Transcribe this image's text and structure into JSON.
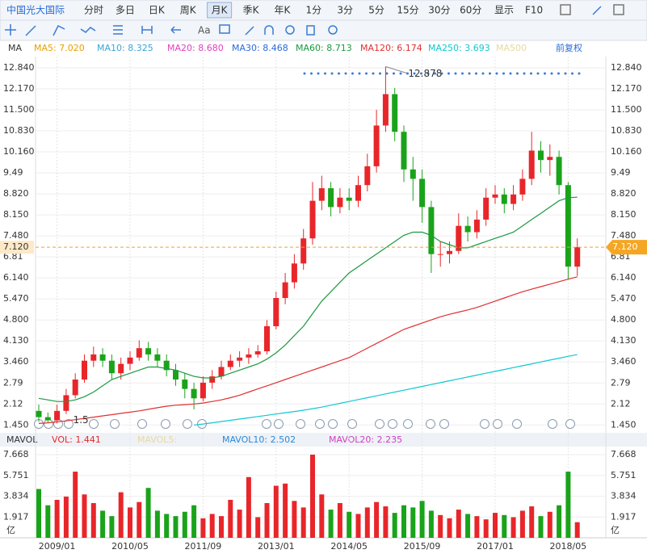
{
  "toolbar": {
    "stock": "中国光大国际",
    "periods": [
      "分时",
      "多日",
      "日K",
      "周K",
      "月K",
      "季K",
      "年K",
      "1分",
      "3分",
      "5分",
      "15分",
      "30分",
      "60分"
    ],
    "selected_period": 4,
    "display": "显示",
    "f10": "F10",
    "font_button": "Aa"
  },
  "chart_data": {
    "type": "candlestick",
    "indicator": "MA",
    "adjust": "前复权",
    "series": [
      {
        "label": "MA5: 7.020",
        "color": "#e6a000"
      },
      {
        "label": "MA10: 8.325",
        "color": "#3ba5d8"
      },
      {
        "label": "MA20: 8.680",
        "color": "#e040c0"
      },
      {
        "label": "MA30: 8.468",
        "color": "#2a6ad8"
      },
      {
        "label": "MA60: 8.713",
        "color": "#1a9a40",
        "values": [
          2.3,
          2.25,
          2.2,
          2.2,
          2.25,
          2.35,
          2.5,
          2.7,
          2.9,
          3.0,
          3.1,
          3.2,
          3.3,
          3.3,
          3.25,
          3.2,
          3.1,
          3.0,
          2.95,
          2.95,
          3.0,
          3.1,
          3.2,
          3.3,
          3.4,
          3.55,
          3.75,
          4.0,
          4.3,
          4.6,
          5.0,
          5.4,
          5.7,
          6.0,
          6.3,
          6.5,
          6.7,
          6.9,
          7.1,
          7.3,
          7.5,
          7.6,
          7.6,
          7.5,
          7.3,
          7.2,
          7.1,
          7.1,
          7.2,
          7.3,
          7.4,
          7.5,
          7.6,
          7.8,
          8.0,
          8.2,
          8.4,
          8.6,
          8.7,
          8.713
        ]
      },
      {
        "label": "MA120: 6.174",
        "color": "#e03030",
        "values": [
          1.5,
          1.52,
          1.55,
          1.58,
          1.62,
          1.66,
          1.7,
          1.74,
          1.78,
          1.82,
          1.86,
          1.9,
          1.95,
          2.0,
          2.05,
          2.08,
          2.1,
          2.12,
          2.15,
          2.2,
          2.25,
          2.32,
          2.4,
          2.5,
          2.6,
          2.7,
          2.8,
          2.9,
          3.0,
          3.1,
          3.2,
          3.3,
          3.4,
          3.5,
          3.6,
          3.75,
          3.9,
          4.05,
          4.2,
          4.35,
          4.5,
          4.6,
          4.7,
          4.8,
          4.9,
          4.98,
          5.05,
          5.12,
          5.2,
          5.3,
          5.4,
          5.5,
          5.6,
          5.7,
          5.78,
          5.86,
          5.94,
          6.02,
          6.1,
          6.174
        ]
      },
      {
        "label": "MA250: 3.693",
        "color": "#10c8d0",
        "values": [
          null,
          null,
          null,
          null,
          null,
          null,
          null,
          null,
          null,
          null,
          null,
          null,
          null,
          null,
          null,
          null,
          null,
          1.45,
          1.48,
          1.52,
          1.56,
          1.6,
          1.64,
          1.68,
          1.72,
          1.76,
          1.8,
          1.84,
          1.88,
          1.92,
          1.97,
          2.02,
          2.08,
          2.14,
          2.2,
          2.26,
          2.32,
          2.38,
          2.44,
          2.5,
          2.56,
          2.62,
          2.68,
          2.74,
          2.8,
          2.86,
          2.92,
          2.98,
          3.04,
          3.1,
          3.16,
          3.22,
          3.28,
          3.34,
          3.4,
          3.46,
          3.52,
          3.58,
          3.64,
          3.693
        ]
      },
      {
        "label": "MA500",
        "color": "#e8d8a0"
      }
    ],
    "categories": [
      null,
      null,
      "2009/01",
      null,
      null,
      null,
      null,
      null,
      null,
      null,
      "2010/05",
      null,
      null,
      null,
      null,
      null,
      null,
      null,
      "2011/09",
      null,
      null,
      null,
      null,
      null,
      null,
      null,
      "2013/01",
      null,
      null,
      null,
      null,
      null,
      null,
      null,
      "2014/05",
      null,
      null,
      null,
      null,
      null,
      null,
      null,
      "2015/09",
      null,
      null,
      null,
      null,
      null,
      null,
      null,
      "2017/01",
      null,
      null,
      null,
      null,
      null,
      null,
      null,
      "2018/05",
      null
    ],
    "open": [
      1.9,
      1.7,
      1.6,
      1.9,
      2.4,
      2.9,
      3.5,
      3.7,
      3.5,
      3.1,
      3.4,
      3.6,
      3.9,
      3.7,
      3.5,
      3.2,
      2.9,
      2.6,
      2.3,
      2.8,
      3.0,
      3.3,
      3.5,
      3.6,
      3.7,
      3.8,
      4.6,
      5.5,
      6.0,
      6.6,
      7.4,
      8.6,
      9.0,
      8.4,
      8.7,
      8.6,
      9.1,
      9.7,
      11.0,
      12.0,
      10.8,
      9.6,
      9.3,
      8.4,
      6.9,
      6.9,
      7.0,
      7.8,
      7.6,
      8.0,
      8.7,
      8.8,
      8.5,
      8.8,
      9.3,
      10.2,
      9.9,
      10.0,
      9.1,
      6.5
    ],
    "high": [
      2.1,
      1.85,
      2.1,
      2.6,
      3.1,
      3.7,
      3.95,
      3.9,
      3.7,
      3.6,
      3.8,
      4.15,
      4.1,
      3.9,
      3.7,
      3.4,
      3.1,
      2.8,
      3.0,
      3.2,
      3.5,
      3.7,
      3.8,
      3.9,
      4.0,
      4.8,
      5.7,
      6.3,
      6.9,
      7.7,
      9.2,
      9.4,
      9.2,
      9.0,
      9.0,
      9.4,
      10.1,
      11.5,
      12.878,
      12.2,
      11.0,
      10.0,
      9.6,
      8.6,
      7.3,
      7.3,
      8.2,
      8.1,
      8.3,
      9.0,
      9.1,
      9.0,
      9.1,
      9.6,
      10.8,
      10.5,
      10.4,
      10.2,
      9.2,
      7.4
    ],
    "low": [
      1.55,
      1.533,
      1.5,
      1.8,
      2.3,
      2.8,
      3.3,
      3.3,
      2.9,
      2.9,
      3.2,
      3.5,
      3.5,
      3.3,
      3.0,
      2.7,
      2.3,
      1.95,
      2.2,
      2.6,
      2.9,
      3.2,
      3.3,
      3.4,
      3.6,
      3.7,
      4.5,
      5.3,
      5.8,
      6.4,
      7.2,
      8.3,
      8.1,
      8.2,
      8.3,
      8.4,
      8.9,
      9.5,
      10.8,
      10.5,
      9.2,
      8.6,
      7.9,
      6.3,
      6.5,
      6.6,
      6.9,
      7.3,
      7.4,
      7.8,
      8.5,
      8.2,
      8.3,
      8.6,
      9.1,
      9.5,
      9.4,
      8.8,
      6.1,
      6.2
    ],
    "close": [
      1.7,
      1.6,
      1.9,
      2.4,
      2.9,
      3.5,
      3.7,
      3.5,
      3.1,
      3.4,
      3.6,
      3.9,
      3.7,
      3.5,
      3.2,
      2.9,
      2.6,
      2.3,
      2.8,
      3.0,
      3.3,
      3.5,
      3.6,
      3.7,
      3.8,
      4.6,
      5.5,
      6.0,
      6.6,
      7.4,
      8.6,
      9.0,
      8.4,
      8.7,
      8.6,
      9.1,
      9.7,
      11.0,
      12.0,
      10.8,
      9.6,
      9.3,
      8.4,
      6.9,
      6.9,
      7.0,
      7.8,
      7.6,
      8.0,
      8.7,
      8.8,
      8.5,
      8.8,
      9.3,
      10.2,
      9.9,
      10.0,
      9.1,
      6.5,
      7.12
    ],
    "up_color": "#e8262a",
    "down_color": "#1aa31a",
    "ylim": [
      1.2,
      13.2
    ],
    "yticks": [
      {
        "value": 1.45,
        "label": "1.450"
      },
      2.12,
      2.79,
      {
        "value": 3.46,
        "label": "3.460"
      },
      {
        "value": 4.13,
        "label": "4.130"
      },
      {
        "value": 4.8,
        "label": "4.800"
      },
      {
        "value": 5.47,
        "label": "5.470"
      },
      {
        "value": 6.14,
        "label": "6.140"
      },
      6.81,
      {
        "value": 7.48,
        "label": "7.480"
      },
      {
        "value": 8.15,
        "label": "8.150"
      },
      {
        "value": 8.82,
        "label": "8.820"
      },
      9.49,
      {
        "value": 10.16,
        "label": "10.160"
      },
      {
        "value": 10.83,
        "label": "10.830"
      },
      {
        "value": 11.5,
        "label": "11.500"
      },
      {
        "value": 12.17,
        "label": "12.170"
      },
      {
        "value": 12.84,
        "label": "12.840"
      }
    ],
    "last_price": {
      "value": 7.12,
      "label": "7.120"
    },
    "volume": {
      "title": "MAVOL",
      "legend": [
        {
          "label": "VOL: 1.441",
          "color": "#e8262a"
        },
        {
          "label": "MAVOL5:",
          "color": "#e8d8a0"
        },
        {
          "label": "MAVOL10: 2.502",
          "color": "#2a8ad8"
        },
        {
          "label": "MAVOL20: 2.235",
          "color": "#d040c0"
        }
      ],
      "values": [
        4.5,
        3.0,
        3.5,
        3.8,
        6.1,
        4.0,
        3.2,
        2.5,
        2.0,
        4.2,
        2.8,
        3.3,
        4.6,
        2.5,
        2.2,
        2.0,
        2.4,
        3.0,
        1.8,
        2.2,
        2.0,
        3.5,
        2.6,
        5.6,
        1.9,
        3.2,
        4.8,
        5.0,
        3.4,
        2.8,
        7.668,
        4.0,
        2.6,
        3.2,
        2.4,
        2.2,
        2.8,
        3.3,
        2.9,
        2.3,
        3.0,
        2.8,
        3.4,
        2.5,
        2.1,
        1.8,
        2.6,
        2.2,
        2.0,
        1.7,
        2.3,
        2.1,
        1.9,
        2.5,
        2.9,
        2.0,
        2.4,
        3.0,
        6.1,
        1.441
      ],
      "ylim": [
        0,
        7.668
      ],
      "yticks": [
        1.917,
        3.834,
        5.751,
        7.668
      ],
      "unit": "亿"
    }
  }
}
